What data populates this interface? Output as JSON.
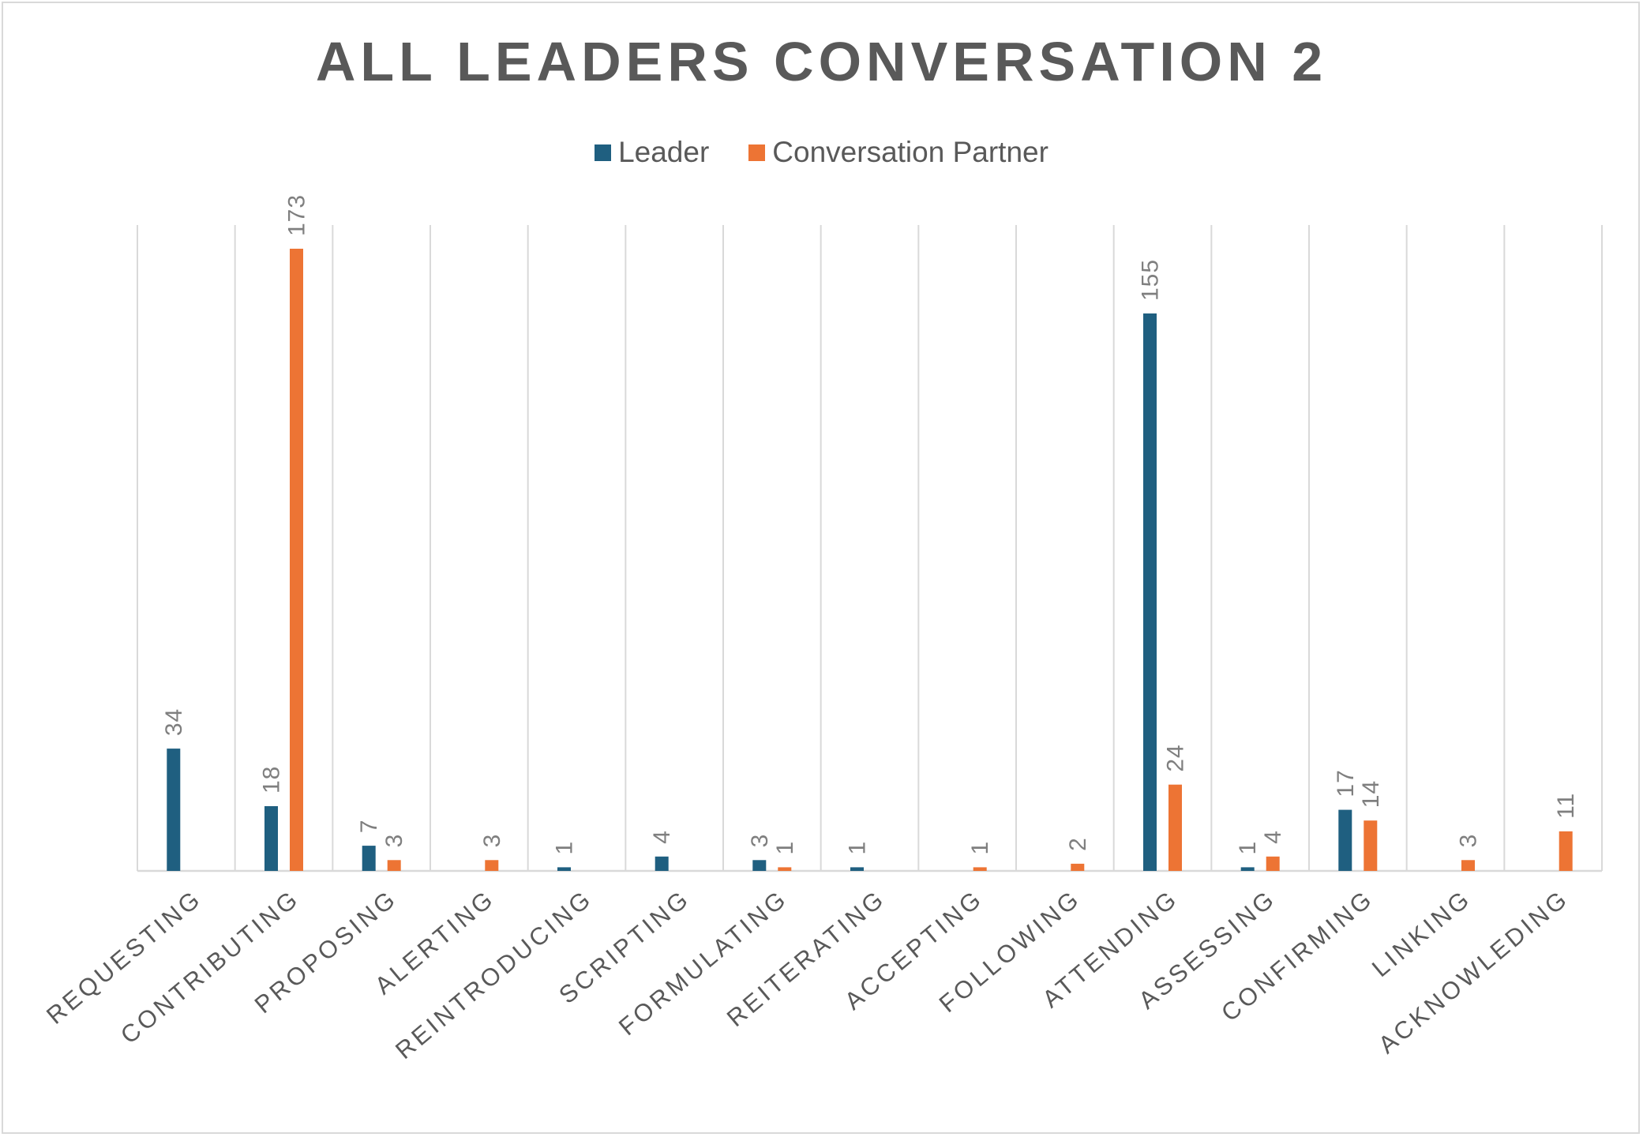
{
  "chart_data": {
    "type": "bar",
    "title": "ALL LEADERS CONVERSATION 2",
    "xlabel": "",
    "ylabel": "",
    "ylim": [
      0,
      200
    ],
    "grid": "vertical category separators",
    "legend_position": "top",
    "categories": [
      "REQUESTING",
      "CONTRIBUTING",
      "PROPOSING",
      "ALERTING",
      "REINTRODUCING",
      "SCRIPTING",
      "FORMULATING",
      "REITERATING",
      "ACCEPTING",
      "FOLLOWING",
      "ATTENDING",
      "ASSESSING",
      "CONFIRMING",
      "LINKING",
      "ACKNOWLEDING"
    ],
    "series": [
      {
        "name": "Leader",
        "color": "#1f5f80",
        "values": [
          34,
          18,
          7,
          null,
          1,
          4,
          3,
          1,
          null,
          null,
          155,
          1,
          17,
          null,
          null
        ]
      },
      {
        "name": "Conversation Partner",
        "color": "#ed7434",
        "values": [
          null,
          173,
          3,
          3,
          null,
          null,
          1,
          null,
          1,
          2,
          24,
          4,
          14,
          3,
          11
        ]
      }
    ]
  }
}
